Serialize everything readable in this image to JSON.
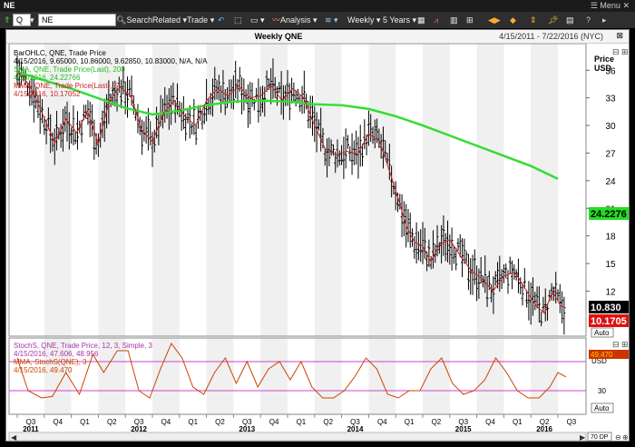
{
  "window": {
    "title": "NE",
    "menu": "Menu"
  },
  "toolbar": {
    "symbol_prefix": "Q",
    "symbol": "NE",
    "search": "Search",
    "related": "Related",
    "trade": "Trade",
    "analysis": "Analysis",
    "period": "Weekly",
    "range": "5 Years"
  },
  "chart": {
    "title": "Weekly QNE",
    "date_range": "4/15/2011 - 7/22/2016 (NYC)",
    "price_label": "Price",
    "currency": "USD",
    "auto": "Auto",
    "stoch_usd": "USD",
    "stoch_auto": "Auto",
    "zoom": "70 DP",
    "legend": {
      "bar_line1": "BarOHLC, QNE, Trade Price",
      "bar_line2": "4/15/2016, 9.65000, 10.86000, 9.62850, 10.83000, N/A, N/A",
      "sma_line1": "SMA, QNE, Trade Price(Last), 200",
      "sma_line2": "4/15/2016, 24.22766",
      "mma_line1": "MMA, QNE, Trade Price(Last), 5",
      "mma_line2": "4/15/2016, 10.17052",
      "stoch_line1": "StochS, QNE, Trade Price, 12, 3, Simple, 3",
      "stoch_line2": "4/15/2016, 47.606, 48.956",
      "stoch_mma_line1": "MMA, StochS(QNE), 3",
      "stoch_mma_line2": "4/15/2016, 49.470"
    },
    "price_badges": {
      "sma": "24.2276",
      "last": "10.830",
      "mma": "10.1705",
      "stoch": "49.470"
    },
    "stoch_ticks": [
      70,
      30
    ],
    "colors": {
      "sma": "#33dd33",
      "mma": "#cc2222",
      "bars": "#000000",
      "stoch": "#cc44cc",
      "stoch_mma": "#cc4400",
      "shade": "#f0f0f0"
    }
  },
  "chart_data": {
    "type": "line",
    "y_ticks": [
      36,
      33,
      30,
      27,
      24,
      21,
      18,
      15,
      12
    ],
    "ylim": [
      7.5,
      38.5
    ],
    "quarter_labels": [
      "Q3",
      "Q4",
      "Q1",
      "Q2",
      "Q3",
      "Q4",
      "Q1",
      "Q2",
      "Q3",
      "Q4",
      "Q1",
      "Q2",
      "Q3",
      "Q4",
      "Q1",
      "Q2",
      "Q3",
      "Q4",
      "Q1",
      "Q2",
      "Q3"
    ],
    "year_labels": [
      {
        "label": "2011",
        "q": 0.5
      },
      {
        "label": "2012",
        "q": 4.5
      },
      {
        "label": "2013",
        "q": 8.5
      },
      {
        "label": "2014",
        "q": 12.5
      },
      {
        "label": "2015",
        "q": 16.5
      },
      {
        "label": "2016",
        "q": 19.5
      }
    ],
    "sma_200": [
      [
        0,
        35.8
      ],
      [
        2,
        34.0
      ],
      [
        4,
        31.9
      ],
      [
        5,
        31.2
      ],
      [
        6,
        31.6
      ],
      [
        7,
        32.2
      ],
      [
        8,
        32.6
      ],
      [
        9,
        32.7
      ],
      [
        10,
        32.6
      ],
      [
        11,
        32.3
      ],
      [
        12,
        32.2
      ],
      [
        13,
        31.8
      ],
      [
        14,
        31.0
      ],
      [
        15,
        30.0
      ],
      [
        16,
        28.9
      ],
      [
        17,
        27.8
      ],
      [
        18,
        26.7
      ],
      [
        19,
        25.6
      ],
      [
        20,
        24.2
      ]
    ],
    "mma_5": [
      [
        0,
        36.0
      ],
      [
        0.5,
        34.2
      ],
      [
        1,
        30.8
      ],
      [
        1.4,
        28.1
      ],
      [
        1.8,
        30.7
      ],
      [
        2.2,
        29.2
      ],
      [
        2.6,
        31.6
      ],
      [
        3,
        28.0
      ],
      [
        3.4,
        32.6
      ],
      [
        3.8,
        34.2
      ],
      [
        4.2,
        33.2
      ],
      [
        4.6,
        29.6
      ],
      [
        5,
        28.2
      ],
      [
        5.4,
        31.3
      ],
      [
        5.8,
        32.7
      ],
      [
        6.2,
        31.0
      ],
      [
        6.6,
        30.0
      ],
      [
        7,
        32.7
      ],
      [
        7.4,
        34.0
      ],
      [
        7.8,
        33.2
      ],
      [
        8.2,
        34.3
      ],
      [
        8.6,
        33.0
      ],
      [
        9,
        33.2
      ],
      [
        9.4,
        34.3
      ],
      [
        9.8,
        32.7
      ],
      [
        10.2,
        34.0
      ],
      [
        10.6,
        33.0
      ],
      [
        11,
        30.0
      ],
      [
        11.4,
        27.4
      ],
      [
        11.8,
        26.8
      ],
      [
        12.2,
        27.2
      ],
      [
        12.6,
        26.9
      ],
      [
        13,
        29.1
      ],
      [
        13.4,
        28.3
      ],
      [
        13.8,
        24.8
      ],
      [
        14.1,
        22.0
      ],
      [
        14.4,
        19.0
      ],
      [
        14.7,
        17.3
      ],
      [
        15,
        16.9
      ],
      [
        15.3,
        15.2
      ],
      [
        15.6,
        17.0
      ],
      [
        16,
        17.6
      ],
      [
        16.4,
        15.8
      ],
      [
        16.8,
        14.2
      ],
      [
        17.2,
        13.3
      ],
      [
        17.6,
        12.0
      ],
      [
        18,
        13.6
      ],
      [
        18.4,
        14.1
      ],
      [
        18.8,
        12.2
      ],
      [
        19.2,
        10.4
      ],
      [
        19.5,
        9.6
      ],
      [
        19.8,
        12.0
      ],
      [
        20.1,
        10.4
      ],
      [
        20.3,
        10.17
      ]
    ],
    "stochastic": [
      [
        0,
        75
      ],
      [
        0.4,
        30
      ],
      [
        0.9,
        20
      ],
      [
        1.3,
        22
      ],
      [
        1.8,
        55
      ],
      [
        2.3,
        25
      ],
      [
        2.8,
        80
      ],
      [
        3.2,
        55
      ],
      [
        3.7,
        85
      ],
      [
        4.1,
        85
      ],
      [
        4.5,
        30
      ],
      [
        4.9,
        20
      ],
      [
        5.3,
        60
      ],
      [
        5.7,
        95
      ],
      [
        6.1,
        75
      ],
      [
        6.5,
        35
      ],
      [
        6.9,
        25
      ],
      [
        7.3,
        55
      ],
      [
        7.7,
        75
      ],
      [
        8.1,
        40
      ],
      [
        8.5,
        70
      ],
      [
        8.9,
        35
      ],
      [
        9.3,
        60
      ],
      [
        9.7,
        70
      ],
      [
        10.1,
        45
      ],
      [
        10.5,
        70
      ],
      [
        10.9,
        35
      ],
      [
        11.3,
        20
      ],
      [
        11.7,
        20
      ],
      [
        12.1,
        30
      ],
      [
        12.5,
        50
      ],
      [
        12.9,
        75
      ],
      [
        13.3,
        60
      ],
      [
        13.7,
        25
      ],
      [
        14.1,
        20
      ],
      [
        14.5,
        30
      ],
      [
        14.9,
        30
      ],
      [
        15.3,
        60
      ],
      [
        15.7,
        75
      ],
      [
        16.1,
        40
      ],
      [
        16.5,
        25
      ],
      [
        16.9,
        30
      ],
      [
        17.3,
        45
      ],
      [
        17.7,
        75
      ],
      [
        18.1,
        55
      ],
      [
        18.5,
        30
      ],
      [
        18.9,
        20
      ],
      [
        19.3,
        20
      ],
      [
        19.7,
        35
      ],
      [
        20.0,
        55
      ],
      [
        20.3,
        49
      ]
    ]
  }
}
